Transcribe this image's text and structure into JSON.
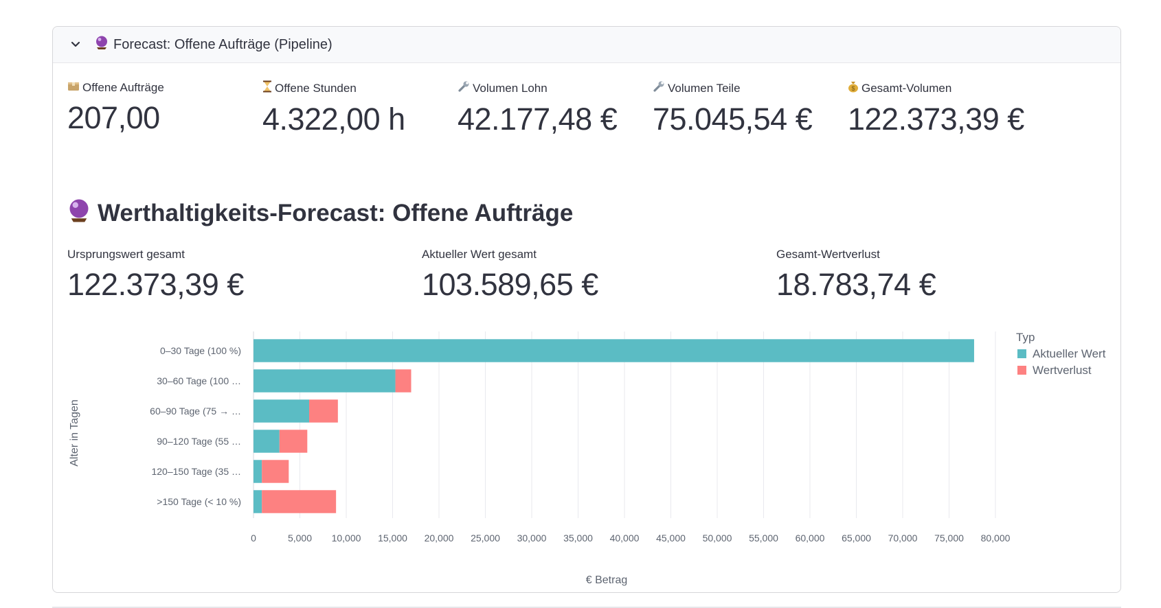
{
  "expander": {
    "title": "Forecast: Offene Aufträge (Pipeline)",
    "icon": "crystal-ball-icon",
    "expanded": true
  },
  "metrics": [
    {
      "icon": "package-icon",
      "label": "Offene Aufträge",
      "value": "207,00"
    },
    {
      "icon": "hourglass-icon",
      "label": "Offene Stunden",
      "value": "4.322,00 h"
    },
    {
      "icon": "wrench-icon",
      "label": "Volumen Lohn",
      "value": "42.177,48 €"
    },
    {
      "icon": "wrench-icon",
      "label": "Volumen Teile",
      "value": "75.045,54 €"
    },
    {
      "icon": "money-bag-icon",
      "label": "Gesamt-Volumen",
      "value": "122.373,39 €"
    }
  ],
  "section": {
    "icon": "crystal-ball-icon",
    "title": "Werthaltigkeits-Forecast: Offene Aufträge"
  },
  "summary_metrics": [
    {
      "label": "Ursprungswert gesamt",
      "value": "122.373,39 €"
    },
    {
      "label": "Aktueller Wert gesamt",
      "value": "103.589,65 €"
    },
    {
      "label": "Gesamt-Wertverlust",
      "value": "18.783,74 €"
    }
  ],
  "chart_data": {
    "type": "bar",
    "orientation": "horizontal",
    "stacked": true,
    "categories": [
      "0–30 Tage (100 %)",
      "30–60 Tage (100 …",
      "60–90 Tage (75 → …",
      "90–120 Tage (55 …",
      "120–150 Tage (35 …",
      ">150 Tage (< 10 %)"
    ],
    "series": [
      {
        "name": "Aktueller Wert",
        "color": "#5bbcc4",
        "values": [
          77700,
          15300,
          6000,
          2800,
          900,
          900
        ]
      },
      {
        "name": "Wertverlust",
        "color": "#fd8181",
        "values": [
          0,
          1700,
          3100,
          3000,
          2900,
          8000
        ]
      }
    ],
    "xlabel": "€ Betrag",
    "ylabel": "Alter in Tagen",
    "xlim": [
      0,
      80000
    ],
    "xticks": [
      0,
      5000,
      10000,
      15000,
      20000,
      25000,
      30000,
      35000,
      40000,
      45000,
      50000,
      55000,
      60000,
      65000,
      70000,
      75000,
      80000
    ],
    "xtick_labels": [
      "0",
      "5,000",
      "10,000",
      "15,000",
      "20,000",
      "25,000",
      "30,000",
      "35,000",
      "40,000",
      "45,000",
      "50,000",
      "55,000",
      "60,000",
      "65,000",
      "70,000",
      "75,000",
      "80,000"
    ],
    "legend_title": "Typ",
    "legend_position": "top-right",
    "grid": true
  }
}
